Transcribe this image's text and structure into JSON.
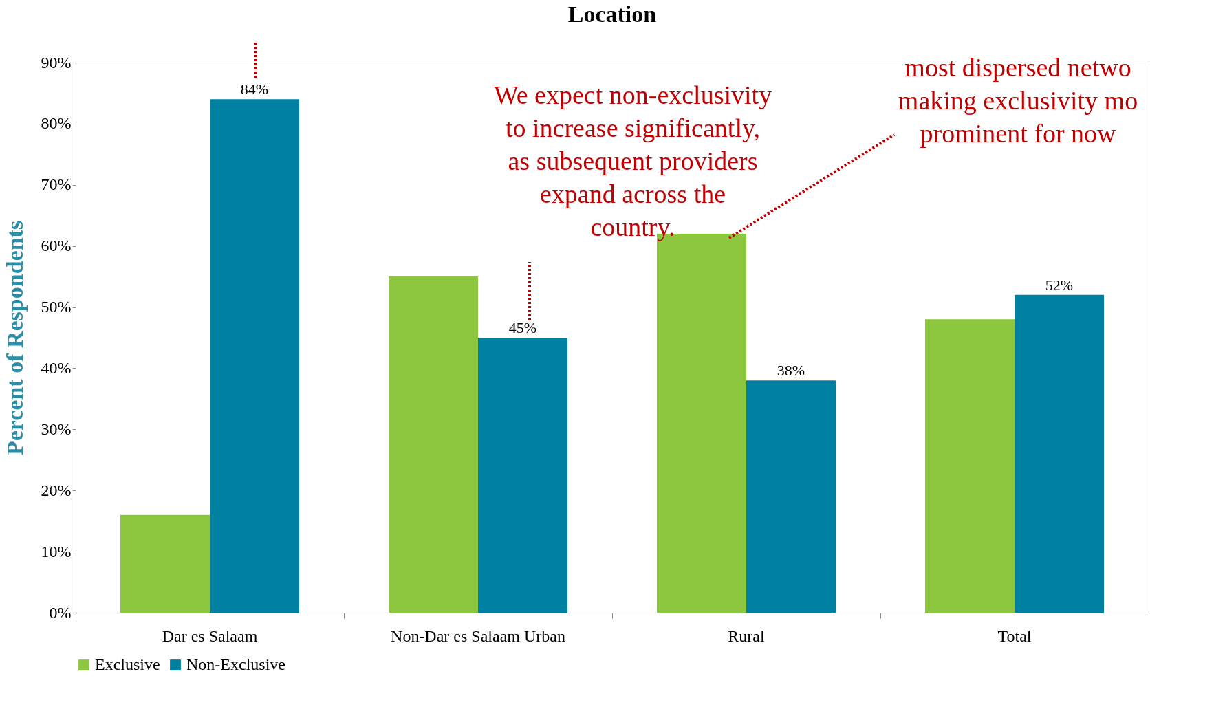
{
  "chart_data": {
    "type": "bar",
    "title": "Location",
    "ylabel": "Percent of Respondents",
    "categories": [
      "Dar es Salaam",
      "Non-Dar es Salaam Urban",
      "Rural",
      "Total"
    ],
    "series": [
      {
        "name": "Exclusive",
        "color": "#8dc63f",
        "values": [
          16,
          55,
          62,
          48
        ]
      },
      {
        "name": "Non-Exclusive",
        "color": "#0081a1",
        "values": [
          84,
          45,
          38,
          52
        ],
        "value_labels": [
          "84%",
          "45%",
          "38%",
          "52%"
        ]
      }
    ],
    "ylim": [
      0,
      90
    ],
    "yticks": [
      {
        "value": 0,
        "label": "0%"
      },
      {
        "value": 10,
        "label": "10%"
      },
      {
        "value": 20,
        "label": "20%"
      },
      {
        "value": 30,
        "label": "30%"
      },
      {
        "value": 40,
        "label": "40%"
      },
      {
        "value": 50,
        "label": "50%"
      },
      {
        "value": 60,
        "label": "60%"
      },
      {
        "value": 70,
        "label": "70%"
      },
      {
        "value": 80,
        "label": "80%"
      },
      {
        "value": 90,
        "label": "90%"
      }
    ],
    "grid": false,
    "legend": "bottom",
    "annotations": [
      "We expect non-exclusivity\nto increase significantly,\nas subsequent providers\nexpand across the\ncountry.",
      "most dispersed netwo\nmaking exclusivity mo\nprominent for now"
    ]
  }
}
